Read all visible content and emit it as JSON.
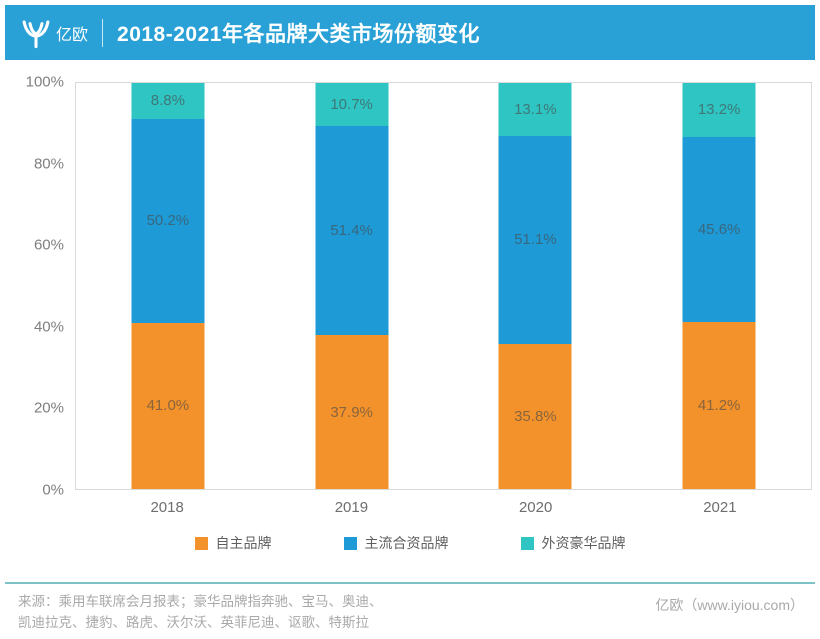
{
  "colors": {
    "header_bg": "#29A0D6",
    "bar_orange": "#F3922B",
    "bar_blue": "#1E9AD6",
    "bar_teal": "#2EC5C3",
    "plot_border": "#D9D9D9",
    "footer_line": "#7DC2C7",
    "footer_text": "#A9A9A9"
  },
  "header": {
    "logo_text": "亿欧",
    "title": "2018-2021年各品牌大类市场份额变化"
  },
  "chart_data": {
    "type": "bar",
    "stacked": true,
    "stacked_total": 100,
    "title": "2018-2021年各品牌大类市场份额变化",
    "categories": [
      "2018",
      "2019",
      "2020",
      "2021"
    ],
    "series": [
      {
        "name": "自主品牌",
        "color": "#F3922B",
        "values": [
          41.0,
          37.9,
          35.8,
          41.2
        ]
      },
      {
        "name": "主流合资品牌",
        "color": "#1E9AD6",
        "values": [
          50.2,
          51.4,
          51.1,
          45.6
        ]
      },
      {
        "name": "外资豪华品牌",
        "color": "#2EC5C3",
        "values": [
          8.8,
          10.7,
          13.1,
          13.2
        ]
      }
    ],
    "value_label_format": "one-decimal-percent",
    "xlabel": "",
    "ylabel": "",
    "ylim": [
      0,
      100
    ],
    "y_ticks": [
      "0%",
      "20%",
      "40%",
      "60%",
      "80%",
      "100%"
    ],
    "grid": false,
    "legend_position": "bottom"
  },
  "footer": {
    "source_lines": [
      "来源：乘用车联席会月报表；豪华品牌指奔驰、宝马、奥迪、",
      "凯迪拉克、捷豹、路虎、沃尔沃、英菲尼迪、讴歌、特斯拉"
    ],
    "brand": "亿欧（www.iyiou.com）"
  }
}
